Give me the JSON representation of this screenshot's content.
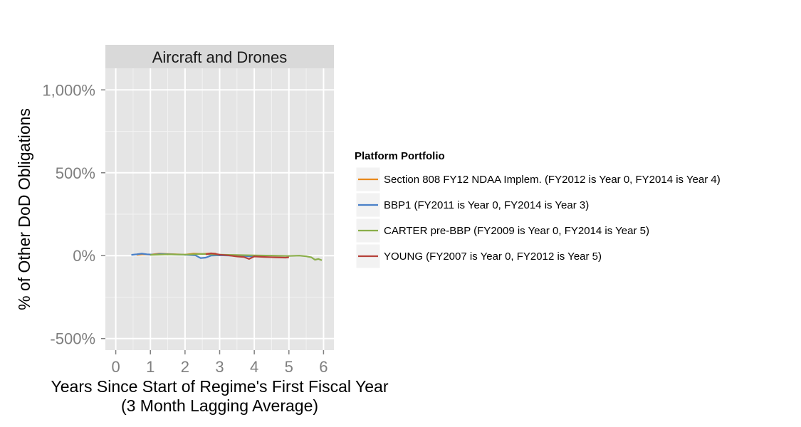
{
  "chart_data": {
    "type": "line",
    "facet_title": "Aircraft and Drones",
    "xlabel_line1": "Years Since Start of Regime's First Fiscal Year",
    "xlabel_line2": "(3 Month Lagging Average)",
    "ylabel": "% of Other DoD Obligations",
    "xlim": [
      -0.3,
      6.3
    ],
    "ylim": [
      -570,
      1130
    ],
    "x_ticks": [
      0,
      1,
      2,
      3,
      4,
      5,
      6
    ],
    "x_tick_labels": [
      "0",
      "1",
      "2",
      "3",
      "4",
      "5",
      "6"
    ],
    "y_ticks": [
      -500,
      0,
      500,
      1000
    ],
    "y_tick_labels": [
      "-500%",
      "0%",
      "500%",
      "1,000%"
    ],
    "grid": true,
    "legend": {
      "title": "Platform Portfolio",
      "position": "right"
    },
    "series": [
      {
        "name": "Section 808 FY12 NDAA Implem. (FY2012 is Year 0, FY2014 is Year 4)",
        "color": "#E8891C",
        "x": [
          0.6,
          0.8,
          1.0,
          1.25,
          1.5,
          1.75,
          2.0,
          2.25,
          2.5,
          2.75,
          2.9
        ],
        "y": [
          5,
          8,
          6,
          12,
          10,
          8,
          6,
          12,
          10,
          14,
          12
        ]
      },
      {
        "name": "BBP1 (FY2011 is Year 0, FY2014 is Year 3)",
        "color": "#4A80C8",
        "x": [
          0.45,
          0.6,
          0.75,
          0.9,
          1.1,
          1.3,
          1.6,
          1.9,
          2.1,
          2.3,
          2.45,
          2.6,
          2.75,
          3.0,
          3.3,
          3.6,
          3.9,
          4.0
        ],
        "y": [
          5,
          8,
          12,
          8,
          6,
          10,
          8,
          6,
          4,
          2,
          -15,
          -12,
          0,
          2,
          0,
          -3,
          -4,
          -5
        ]
      },
      {
        "name": "CARTER pre-BBP (FY2009 is Year 0, FY2014 is Year 5)",
        "color": "#8AAE4A",
        "x": [
          1.0,
          1.5,
          2.0,
          2.5,
          3.0,
          3.5,
          4.0,
          4.5,
          5.0,
          5.3,
          5.5,
          5.65,
          5.75,
          5.85,
          5.95
        ],
        "y": [
          5,
          8,
          6,
          10,
          6,
          4,
          2,
          0,
          -2,
          0,
          -4,
          -10,
          -25,
          -20,
          -28
        ]
      },
      {
        "name": "YOUNG (FY2007 is Year 0, FY2012 is Year 5)",
        "color": "#B6413A",
        "x": [
          2.6,
          2.75,
          2.9,
          3.0,
          3.25,
          3.5,
          3.7,
          3.85,
          4.0,
          4.3,
          4.6,
          4.9,
          5.0
        ],
        "y": [
          8,
          14,
          10,
          6,
          2,
          -5,
          -8,
          -20,
          -5,
          -8,
          -10,
          -12,
          -10
        ]
      }
    ]
  }
}
